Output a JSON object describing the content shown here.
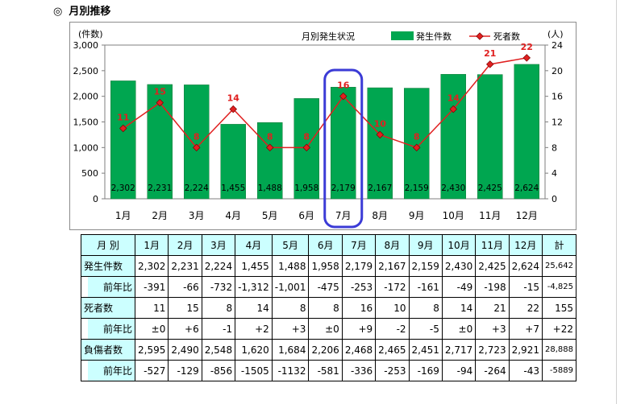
{
  "section_title": "月別推移",
  "section_mark": "◎",
  "chart_data": {
    "type": "bar",
    "title": "月別発生状況",
    "categories": [
      "1月",
      "2月",
      "3月",
      "4月",
      "5月",
      "6月",
      "7月",
      "8月",
      "9月",
      "10月",
      "11月",
      "12月"
    ],
    "series": [
      {
        "name": "発生件数",
        "kind": "bar",
        "axis": "left",
        "color": "#00a650",
        "values": [
          2302,
          2231,
          2224,
          1455,
          1488,
          1958,
          2179,
          2167,
          2159,
          2430,
          2425,
          2624
        ],
        "labels": [
          "2,302",
          "2,231",
          "2,224",
          "1,455",
          "1,488",
          "1,958",
          "2,179",
          "2,167",
          "2,159",
          "2,430",
          "2,425",
          "2,624"
        ]
      },
      {
        "name": "死者数",
        "kind": "line",
        "axis": "right",
        "color": "#e02020",
        "values": [
          11,
          15,
          8,
          14,
          8,
          8,
          16,
          10,
          8,
          14,
          21,
          22
        ]
      }
    ],
    "y_left": {
      "unit": "(件数)",
      "ylim": [
        0,
        3000
      ],
      "ticks": [
        "0",
        "500",
        "1,000",
        "1,500",
        "2,000",
        "2,500",
        "3,000"
      ]
    },
    "y_right": {
      "unit": "(人)",
      "ylim": [
        0,
        24
      ],
      "ticks": [
        "0",
        "4",
        "8",
        "12",
        "16",
        "20",
        "24"
      ]
    },
    "legend_position": "top-right",
    "highlight": {
      "category": "7月",
      "color": "#3b3bd6"
    }
  },
  "table": {
    "header": [
      "月 別",
      "1月",
      "2月",
      "3月",
      "4月",
      "5月",
      "6月",
      "7月",
      "8月",
      "9月",
      "10月",
      "11月",
      "12月",
      "計"
    ],
    "rows": [
      {
        "label": "発生件数",
        "sub": false,
        "values": [
          "2,302",
          "2,231",
          "2,224",
          "1,455",
          "1,488",
          "1,958",
          "2,179",
          "2,167",
          "2,159",
          "2,430",
          "2,425",
          "2,624",
          "25,642"
        ]
      },
      {
        "label": "前年比",
        "sub": true,
        "values": [
          "-391",
          "-66",
          "-732",
          "-1,312",
          "-1,001",
          "-475",
          "-253",
          "-172",
          "-161",
          "-49",
          "-198",
          "-15",
          "-4,825"
        ]
      },
      {
        "label": "死者数",
        "sub": false,
        "values": [
          "11",
          "15",
          "8",
          "14",
          "8",
          "8",
          "16",
          "10",
          "8",
          "14",
          "21",
          "22",
          "155"
        ]
      },
      {
        "label": "前年比",
        "sub": true,
        "values": [
          "±0",
          "+6",
          "-1",
          "+2",
          "+3",
          "±0",
          "+9",
          "-2",
          "-5",
          "±0",
          "+3",
          "+7",
          "+22"
        ]
      },
      {
        "label": "負傷者数",
        "sub": false,
        "values": [
          "2,595",
          "2,490",
          "2,548",
          "1,620",
          "1,684",
          "2,206",
          "2,468",
          "2,465",
          "2,451",
          "2,717",
          "2,723",
          "2,921",
          "28,888"
        ]
      },
      {
        "label": "前年比",
        "sub": true,
        "values": [
          "-527",
          "-129",
          "-856",
          "-1505",
          "-1132",
          "-581",
          "-336",
          "-253",
          "-169",
          "-94",
          "-264",
          "-43",
          "-5889"
        ]
      }
    ]
  }
}
